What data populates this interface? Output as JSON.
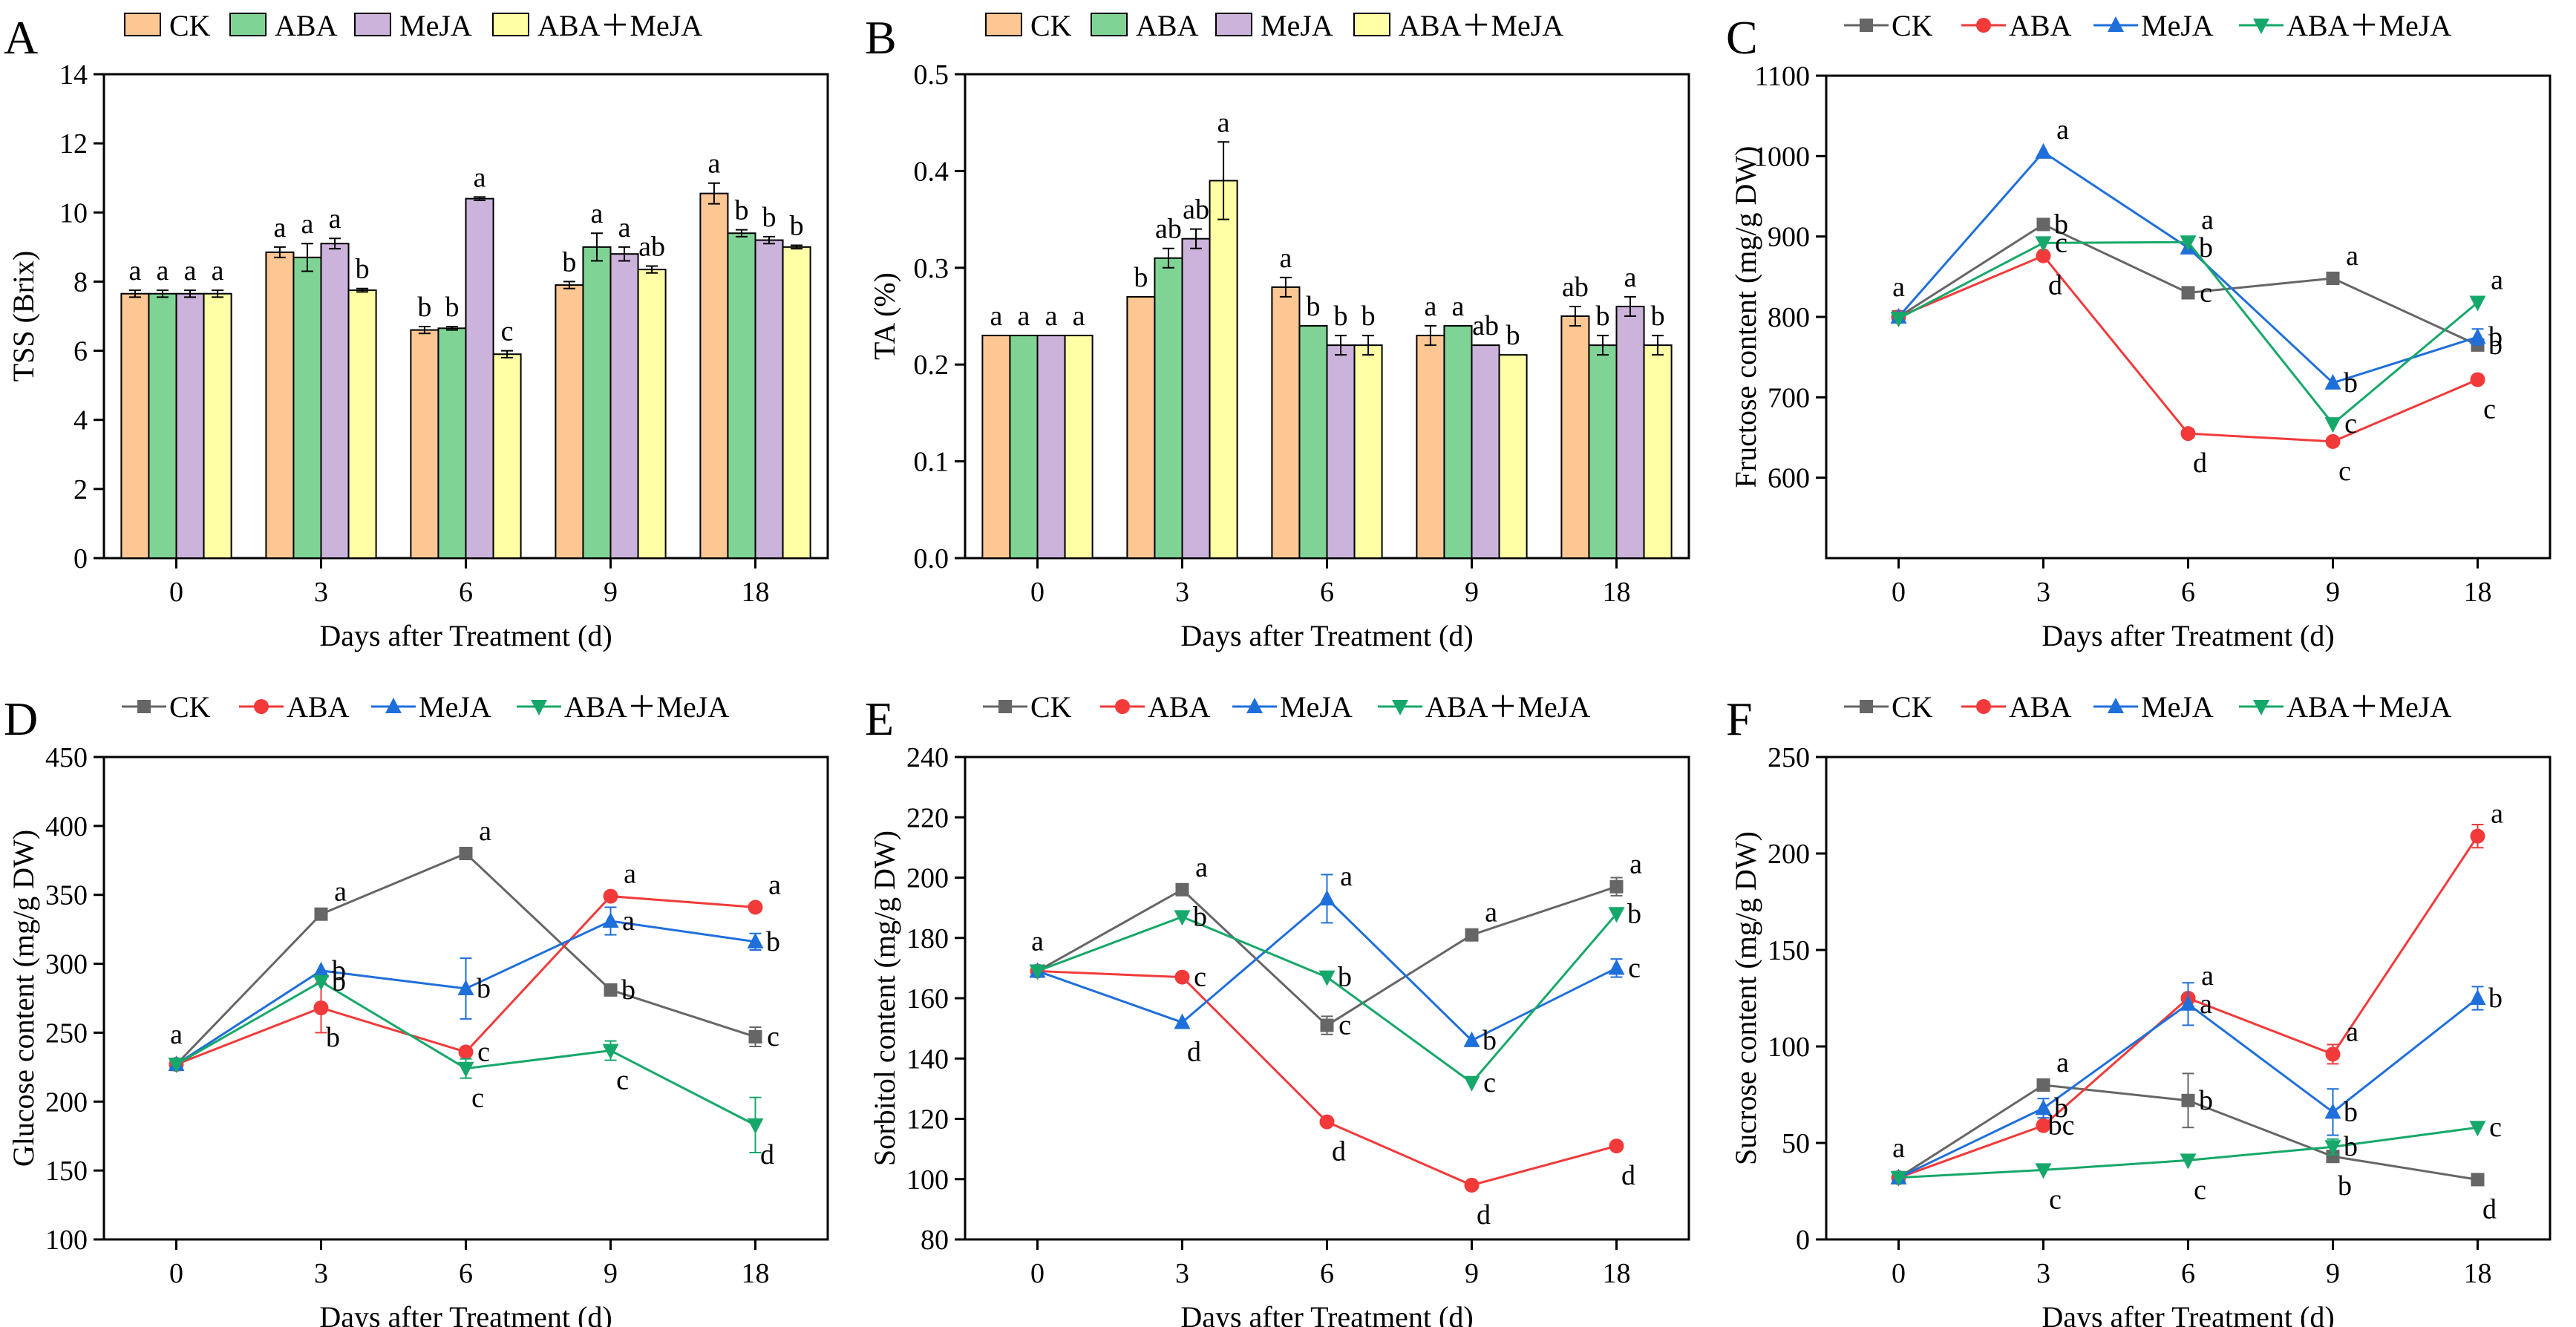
{
  "figure": {
    "panel_letters": [
      "A",
      "B",
      "C",
      "D",
      "E",
      "F"
    ]
  },
  "styles": {
    "bar_colors": [
      "#FDC794",
      "#7FD495",
      "#CBB3DB",
      "#FFFFA5"
    ],
    "line_colors": [
      "#666666",
      "#F23A3A",
      "#1F6FDB",
      "#16A86A"
    ],
    "line_markers": [
      "square",
      "circle",
      "triangle-up",
      "triangle-down"
    ]
  },
  "chart_data": [
    {
      "panel": "A",
      "type": "bar",
      "categories": [
        "0",
        "3",
        "6",
        "9",
        "18"
      ],
      "xlabel": "Days after Treatment (d)",
      "ylabel": "TSS (Brix)",
      "ylim": [
        0,
        14
      ],
      "yticks": [
        0,
        2,
        4,
        6,
        8,
        10,
        12,
        14
      ],
      "legend": [
        "CK",
        "ABA",
        "MeJA",
        "ABA＋MeJA"
      ],
      "series": [
        {
          "name": "CK",
          "values": [
            7.65,
            8.85,
            6.6,
            7.9,
            10.55
          ],
          "errors": [
            0.1,
            0.15,
            0.1,
            0.1,
            0.3
          ],
          "letters": [
            "a",
            "a",
            "b",
            "b",
            "a"
          ]
        },
        {
          "name": "ABA",
          "values": [
            7.65,
            8.7,
            6.65,
            9.0,
            9.4
          ],
          "errors": [
            0.1,
            0.4,
            0.05,
            0.4,
            0.1
          ],
          "letters": [
            "a",
            "a",
            "b",
            "a",
            "b"
          ]
        },
        {
          "name": "MeJA",
          "values": [
            7.65,
            9.1,
            10.4,
            8.8,
            9.2
          ],
          "errors": [
            0.1,
            0.15,
            0.05,
            0.2,
            0.1
          ],
          "letters": [
            "a",
            "a",
            "a",
            "a",
            "b"
          ]
        },
        {
          "name": "ABA＋MeJA",
          "values": [
            7.65,
            7.75,
            5.9,
            8.35,
            9.0
          ],
          "errors": [
            0.1,
            0.05,
            0.1,
            0.1,
            0.05
          ],
          "letters": [
            "a",
            "b",
            "c",
            "ab",
            "b"
          ]
        }
      ]
    },
    {
      "panel": "B",
      "type": "bar",
      "categories": [
        "0",
        "3",
        "6",
        "9",
        "18"
      ],
      "xlabel": "Days after Treatment (d)",
      "ylabel": "TA (%)",
      "ylim": [
        0,
        0.5
      ],
      "yticks": [
        "0.0",
        "0.1",
        "0.2",
        "0.3",
        "0.4",
        "0.5"
      ],
      "legend": [
        "CK",
        "ABA",
        "MeJA",
        "ABA＋MeJA"
      ],
      "series": [
        {
          "name": "CK",
          "values": [
            0.23,
            0.27,
            0.28,
            0.23,
            0.25
          ],
          "errors": [
            0,
            0,
            0.01,
            0.01,
            0.01
          ],
          "letters": [
            "a",
            "b",
            "a",
            "a",
            "ab"
          ]
        },
        {
          "name": "ABA",
          "values": [
            0.23,
            0.31,
            0.24,
            0.24,
            0.22
          ],
          "errors": [
            0,
            0.01,
            0,
            0,
            0.01
          ],
          "letters": [
            "a",
            "ab",
            "b",
            "a",
            "b"
          ]
        },
        {
          "name": "MeJA",
          "values": [
            0.23,
            0.33,
            0.22,
            0.22,
            0.26
          ],
          "errors": [
            0,
            0.01,
            0.01,
            0,
            0.01
          ],
          "letters": [
            "a",
            "ab",
            "b",
            "ab",
            "a"
          ]
        },
        {
          "name": "ABA＋MeJA",
          "values": [
            0.23,
            0.39,
            0.22,
            0.21,
            0.22
          ],
          "errors": [
            0,
            0.04,
            0.01,
            0,
            0.01
          ],
          "letters": [
            "a",
            "a",
            "b",
            "b",
            "b"
          ]
        }
      ]
    },
    {
      "panel": "C",
      "type": "line",
      "x": [
        "0",
        "3",
        "6",
        "9",
        "18"
      ],
      "xlabel": "Days after Treatment (d)",
      "ylabel": "Fructose content (mg/g DW)",
      "ylim": [
        500,
        1100
      ],
      "yticks": [
        600,
        700,
        800,
        900,
        1000,
        1100
      ],
      "legend": [
        "CK",
        "ABA",
        "MeJA",
        "ABA＋MeJA"
      ],
      "series": [
        {
          "name": "CK",
          "values": [
            800,
            915,
            830,
            848,
            765
          ],
          "errors": [
            0,
            0,
            0,
            0,
            0
          ],
          "letters": [
            "a",
            "b",
            "c",
            "a",
            "b"
          ]
        },
        {
          "name": "ABA",
          "values": [
            800,
            876,
            655,
            645,
            722
          ],
          "errors": [
            0,
            0,
            0,
            0,
            0
          ],
          "letters": [
            "",
            "d",
            "d",
            "c",
            "c"
          ]
        },
        {
          "name": "MeJA",
          "values": [
            800,
            1005,
            886,
            718,
            775
          ],
          "errors": [
            0,
            0,
            0,
            0,
            10
          ],
          "letters": [
            "",
            "a",
            "b",
            "b",
            "b"
          ]
        },
        {
          "name": "ABA＋MeJA",
          "values": [
            798,
            892,
            893,
            667,
            818
          ],
          "errors": [
            0,
            0,
            0,
            0,
            0
          ],
          "letters": [
            "",
            "c",
            "a",
            "c",
            "a"
          ]
        }
      ]
    },
    {
      "panel": "D",
      "type": "line",
      "x": [
        "0",
        "3",
        "6",
        "9",
        "18"
      ],
      "xlabel": "Days after Treatment (d)",
      "ylabel": "Glucose content (mg/g DW)",
      "ylim": [
        100,
        450
      ],
      "yticks": [
        100,
        150,
        200,
        250,
        300,
        350,
        400,
        450
      ],
      "legend": [
        "CK",
        "ABA",
        "MeJA",
        "ABA＋MeJA"
      ],
      "series": [
        {
          "name": "CK",
          "values": [
            227,
            336,
            380,
            281,
            247
          ],
          "errors": [
            0,
            0,
            0,
            0,
            7
          ],
          "letters": [
            "a",
            "a",
            "a",
            "b",
            "c"
          ]
        },
        {
          "name": "ABA",
          "values": [
            227,
            268,
            236,
            349,
            341
          ],
          "errors": [
            0,
            18,
            0,
            0,
            0
          ],
          "letters": [
            "",
            "b",
            "c",
            "a",
            "a"
          ]
        },
        {
          "name": "MeJA",
          "values": [
            227,
            295,
            282,
            331,
            316
          ],
          "errors": [
            0,
            0,
            22,
            10,
            6
          ],
          "letters": [
            "",
            "b",
            "b",
            "a",
            "b"
          ]
        },
        {
          "name": "ABA＋MeJA",
          "values": [
            227,
            287,
            224,
            237,
            183
          ],
          "errors": [
            0,
            0,
            7,
            7,
            20
          ],
          "letters": [
            "",
            "b",
            "c",
            "c",
            "d"
          ]
        }
      ]
    },
    {
      "panel": "E",
      "type": "line",
      "x": [
        "0",
        "3",
        "6",
        "9",
        "18"
      ],
      "xlabel": "Days after Treatment (d)",
      "ylabel": "Sorbitol content (mg/g DW)",
      "ylim": [
        80,
        240
      ],
      "yticks": [
        80,
        100,
        120,
        140,
        160,
        180,
        200,
        220,
        240
      ],
      "legend": [
        "CK",
        "ABA",
        "MeJA",
        "ABA＋MeJA"
      ],
      "series": [
        {
          "name": "CK",
          "values": [
            169,
            196,
            151,
            181,
            197
          ],
          "errors": [
            0,
            0,
            3,
            0,
            3
          ],
          "letters": [
            "a",
            "a",
            "c",
            "a",
            "a"
          ]
        },
        {
          "name": "ABA",
          "values": [
            169,
            167,
            119,
            98,
            111
          ],
          "errors": [
            0,
            0,
            0,
            0,
            0
          ],
          "letters": [
            "",
            "c",
            "d",
            "d",
            "d"
          ]
        },
        {
          "name": "MeJA",
          "values": [
            169,
            152,
            193,
            146,
            170
          ],
          "errors": [
            0,
            0,
            8,
            0,
            3
          ],
          "letters": [
            "",
            "d",
            "a",
            "b",
            "c"
          ]
        },
        {
          "name": "ABA＋MeJA",
          "values": [
            169,
            187,
            167,
            132,
            188
          ],
          "errors": [
            0,
            0,
            0,
            0,
            0
          ],
          "letters": [
            "",
            "b",
            "b",
            "c",
            "b"
          ]
        }
      ]
    },
    {
      "panel": "F",
      "type": "line",
      "x": [
        "0",
        "3",
        "6",
        "9",
        "18"
      ],
      "xlabel": "Days after Treatment (d)",
      "ylabel": "Sucrose content (mg/g DW)",
      "ylim": [
        0,
        250
      ],
      "yticks": [
        0,
        50,
        100,
        150,
        200,
        250
      ],
      "legend": [
        "CK",
        "ABA",
        "MeJA",
        "ABA＋MeJA"
      ],
      "series": [
        {
          "name": "CK",
          "values": [
            32,
            80,
            72,
            43,
            31
          ],
          "errors": [
            0,
            0,
            14,
            0,
            0
          ],
          "letters": [
            "a",
            "a",
            "b",
            "b",
            "d"
          ]
        },
        {
          "name": "ABA",
          "values": [
            32,
            59,
            125,
            96,
            209
          ],
          "errors": [
            0,
            0,
            0,
            5,
            6
          ],
          "letters": [
            "",
            "bc",
            "a",
            "a",
            "a"
          ]
        },
        {
          "name": "MeJA",
          "values": [
            32,
            68,
            122,
            66,
            125
          ],
          "errors": [
            0,
            5,
            11,
            12,
            6
          ],
          "letters": [
            "",
            "b",
            "a",
            "b",
            "b"
          ]
        },
        {
          "name": "ABA＋MeJA",
          "values": [
            32,
            36,
            41,
            48,
            58
          ],
          "errors": [
            0,
            0,
            0,
            4,
            0
          ],
          "letters": [
            "",
            "c",
            "c",
            "b",
            "c"
          ]
        }
      ]
    }
  ]
}
